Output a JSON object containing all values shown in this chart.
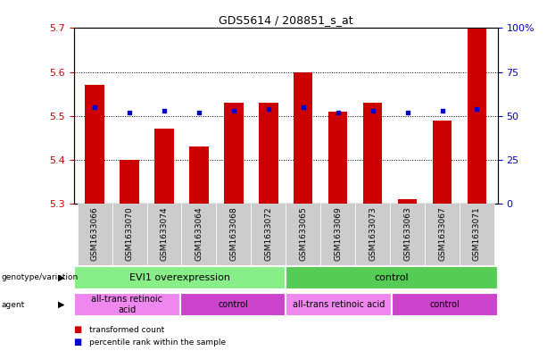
{
  "title": "GDS5614 / 208851_s_at",
  "samples": [
    "GSM1633066",
    "GSM1633070",
    "GSM1633074",
    "GSM1633064",
    "GSM1633068",
    "GSM1633072",
    "GSM1633065",
    "GSM1633069",
    "GSM1633073",
    "GSM1633063",
    "GSM1633067",
    "GSM1633071"
  ],
  "transformed_counts": [
    5.57,
    5.4,
    5.47,
    5.43,
    5.53,
    5.53,
    5.6,
    5.51,
    5.53,
    5.31,
    5.49,
    5.7
  ],
  "percentile_ranks": [
    55,
    52,
    53,
    52,
    53,
    54,
    55,
    52,
    53,
    52,
    53,
    54
  ],
  "ylim_left": [
    5.3,
    5.7
  ],
  "ylim_right": [
    0,
    100
  ],
  "yticks_left": [
    5.3,
    5.4,
    5.5,
    5.6,
    5.7
  ],
  "yticks_right": [
    0,
    25,
    50,
    75,
    100
  ],
  "ytick_labels_right": [
    "0",
    "25",
    "50",
    "75",
    "100%"
  ],
  "bar_color": "#cc0000",
  "dot_color": "#0000cc",
  "bar_bottom": 5.3,
  "genotype_groups": [
    {
      "label": "EVI1 overexpression",
      "start": 0,
      "end": 6,
      "color": "#88ee88"
    },
    {
      "label": "control",
      "start": 6,
      "end": 12,
      "color": "#55cc55"
    }
  ],
  "agent_groups": [
    {
      "label": "all-trans retinoic\nacid",
      "start": 0,
      "end": 3,
      "color": "#ee88ee"
    },
    {
      "label": "control",
      "start": 3,
      "end": 6,
      "color": "#cc44cc"
    },
    {
      "label": "all-trans retinoic acid",
      "start": 6,
      "end": 9,
      "color": "#ee88ee"
    },
    {
      "label": "control",
      "start": 9,
      "end": 12,
      "color": "#cc44cc"
    }
  ],
  "label_color_left": "#cc0000",
  "label_color_right": "#0000cc",
  "tick_bg_color": "#cccccc",
  "grid_color": "#000000"
}
